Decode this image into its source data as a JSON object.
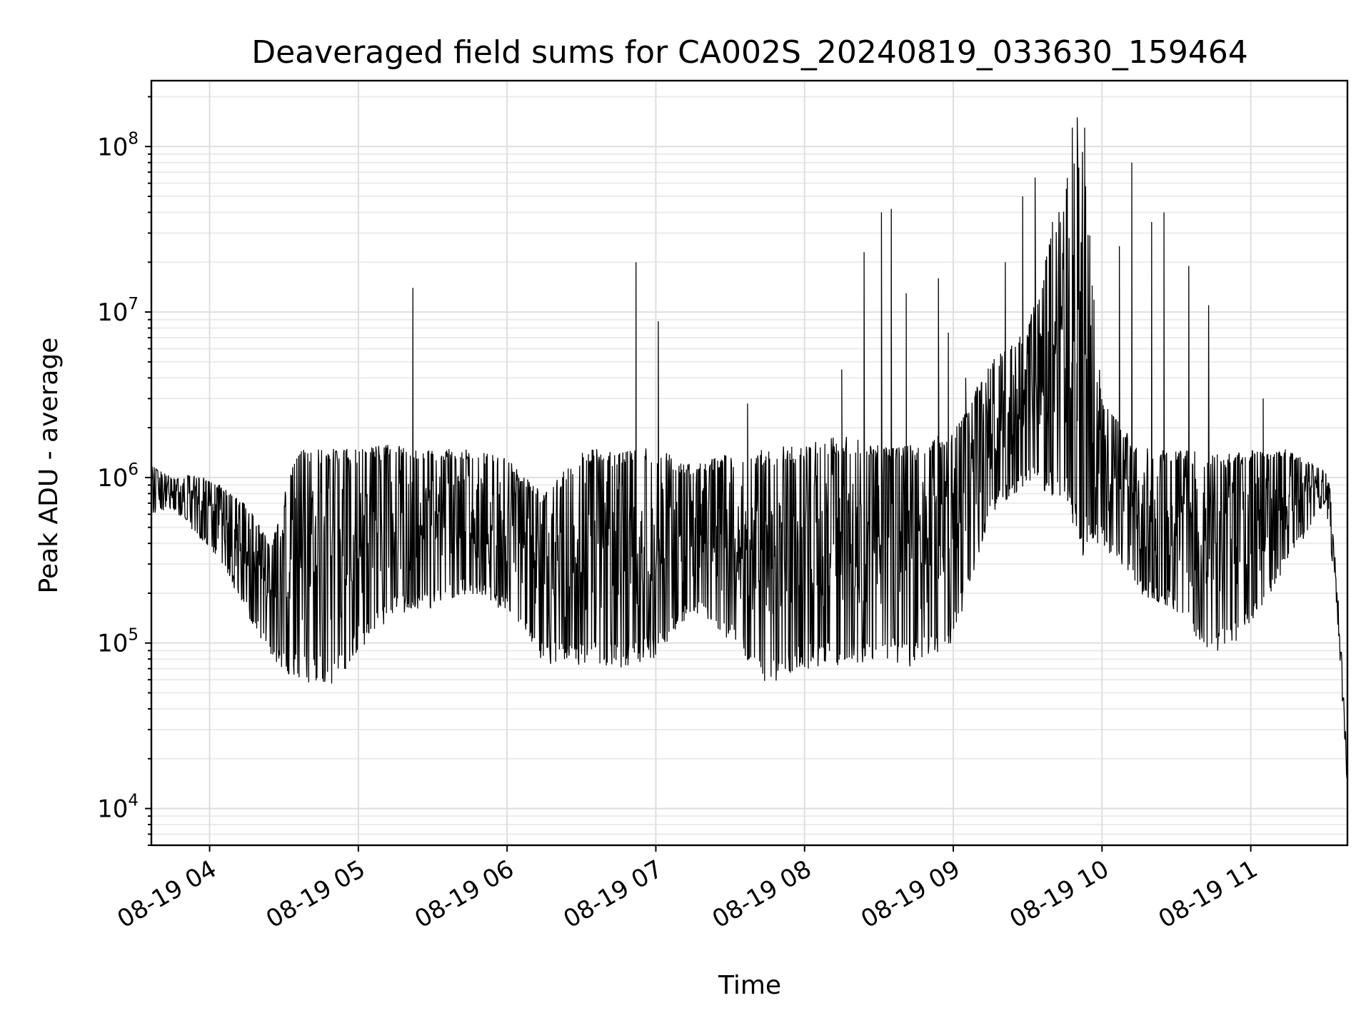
{
  "chart_data": {
    "type": "line",
    "title": "Deaveraged field sums for CA002S_20240819_033630_159464",
    "xlabel": "Time",
    "ylabel": "Peak ADU - average",
    "y_scale": "log",
    "ylim": [
      6000,
      250000000
    ],
    "xlim": [
      "2024-08-19 03:36:30",
      "2024-08-19 11:39:00"
    ],
    "grid": "major and minor",
    "x_ticks": [
      {
        "t": "2024-08-19 04:00",
        "label": "08-19 04"
      },
      {
        "t": "2024-08-19 05:00",
        "label": "08-19 05"
      },
      {
        "t": "2024-08-19 06:00",
        "label": "08-19 06"
      },
      {
        "t": "2024-08-19 07:00",
        "label": "08-19 07"
      },
      {
        "t": "2024-08-19 08:00",
        "label": "08-19 08"
      },
      {
        "t": "2024-08-19 09:00",
        "label": "08-19 09"
      },
      {
        "t": "2024-08-19 10:00",
        "label": "08-19 10"
      },
      {
        "t": "2024-08-19 11:00",
        "label": "08-19 11"
      }
    ],
    "y_ticks": [
      {
        "value": 10000,
        "base": "10",
        "exp": "4"
      },
      {
        "value": 100000,
        "base": "10",
        "exp": "5"
      },
      {
        "value": 1000000,
        "base": "10",
        "exp": "6"
      },
      {
        "value": 10000000,
        "base": "10",
        "exp": "7"
      },
      {
        "value": 100000000,
        "base": "10",
        "exp": "8"
      }
    ],
    "series": [
      {
        "line_color": "#000000",
        "envelope": [
          {
            "t": "2024-08-19 03:36",
            "low": 600000,
            "high": 1200000
          },
          {
            "t": "2024-08-19 03:45",
            "low": 650000,
            "high": 1000000
          },
          {
            "t": "2024-08-19 03:55",
            "low": 450000,
            "high": 1050000
          },
          {
            "t": "2024-08-19 04:05",
            "low": 300000,
            "high": 900000
          },
          {
            "t": "2024-08-19 04:15",
            "low": 150000,
            "high": 700000
          },
          {
            "t": "2024-08-19 04:25",
            "low": 80000,
            "high": 400000
          },
          {
            "t": "2024-08-19 04:35",
            "low": 58000,
            "high": 1500000
          },
          {
            "t": "2024-08-19 04:50",
            "low": 55000,
            "high": 1500000
          },
          {
            "t": "2024-08-19 05:00",
            "low": 90000,
            "high": 1500000
          },
          {
            "t": "2024-08-19 05:15",
            "low": 150000,
            "high": 1600000
          },
          {
            "t": "2024-08-19 05:30",
            "low": 160000,
            "high": 1500000
          },
          {
            "t": "2024-08-19 05:45",
            "low": 200000,
            "high": 1500000
          },
          {
            "t": "2024-08-19 06:00",
            "low": 150000,
            "high": 1300000
          },
          {
            "t": "2024-08-19 06:15",
            "low": 75000,
            "high": 800000
          },
          {
            "t": "2024-08-19 06:30",
            "low": 70000,
            "high": 1500000
          },
          {
            "t": "2024-08-19 06:45",
            "low": 70000,
            "high": 1500000
          },
          {
            "t": "2024-08-19 07:00",
            "low": 80000,
            "high": 1500000
          },
          {
            "t": "2024-08-19 07:15",
            "low": 150000,
            "high": 1200000
          },
          {
            "t": "2024-08-19 07:30",
            "low": 100000,
            "high": 1400000
          },
          {
            "t": "2024-08-19 07:45",
            "low": 55000,
            "high": 1500000
          },
          {
            "t": "2024-08-19 08:00",
            "low": 70000,
            "high": 1600000
          },
          {
            "t": "2024-08-19 08:15",
            "low": 70000,
            "high": 1800000
          },
          {
            "t": "2024-08-19 08:30",
            "low": 80000,
            "high": 1600000
          },
          {
            "t": "2024-08-19 08:45",
            "low": 70000,
            "high": 1600000
          },
          {
            "t": "2024-08-19 09:00",
            "low": 100000,
            "high": 2000000
          },
          {
            "t": "2024-08-19 09:15",
            "low": 600000,
            "high": 5000000
          },
          {
            "t": "2024-08-19 09:30",
            "low": 900000,
            "high": 8000000
          },
          {
            "t": "2024-08-19 09:45",
            "low": 700000,
            "high": 60000000
          },
          {
            "t": "2024-08-19 09:52",
            "low": 300000,
            "high": 120000000
          },
          {
            "t": "2024-08-19 10:00",
            "low": 400000,
            "high": 3000000
          },
          {
            "t": "2024-08-19 10:15",
            "low": 200000,
            "high": 1500000
          },
          {
            "t": "2024-08-19 10:30",
            "low": 150000,
            "high": 1500000
          },
          {
            "t": "2024-08-19 10:45",
            "low": 80000,
            "high": 1400000
          },
          {
            "t": "2024-08-19 11:00",
            "low": 120000,
            "high": 1500000
          },
          {
            "t": "2024-08-19 11:15",
            "low": 300000,
            "high": 1500000
          },
          {
            "t": "2024-08-19 11:30",
            "low": 700000,
            "high": 1100000
          },
          {
            "t": "2024-08-19 11:33",
            "low": 300000,
            "high": 800000
          },
          {
            "t": "2024-08-19 11:36",
            "low": 50000,
            "high": 200000
          },
          {
            "t": "2024-08-19 11:39",
            "low": 9500,
            "high": 25000
          }
        ],
        "spikes": [
          {
            "t": "2024-08-19 05:22",
            "value": 14000000
          },
          {
            "t": "2024-08-19 06:52",
            "value": 20000000
          },
          {
            "t": "2024-08-19 07:01",
            "value": 8800000
          },
          {
            "t": "2024-08-19 07:37",
            "value": 2800000
          },
          {
            "t": "2024-08-19 08:15",
            "value": 4500000
          },
          {
            "t": "2024-08-19 08:24",
            "value": 23000000
          },
          {
            "t": "2024-08-19 08:35",
            "value": 42000000
          },
          {
            "t": "2024-08-19 08:31",
            "value": 40000000
          },
          {
            "t": "2024-08-19 08:41",
            "value": 13000000
          },
          {
            "t": "2024-08-19 08:54",
            "value": 16000000
          },
          {
            "t": "2024-08-19 08:58",
            "value": 7500000
          },
          {
            "t": "2024-08-19 09:05",
            "value": 4000000
          },
          {
            "t": "2024-08-19 09:21",
            "value": 20000000
          },
          {
            "t": "2024-08-19 09:28",
            "value": 50000000
          },
          {
            "t": "2024-08-19 09:33",
            "value": 65000000
          },
          {
            "t": "2024-08-19 09:40",
            "value": 35000000
          },
          {
            "t": "2024-08-19 09:48",
            "value": 130000000
          },
          {
            "t": "2024-08-19 09:50",
            "value": 150000000
          },
          {
            "t": "2024-08-19 09:53",
            "value": 130000000
          },
          {
            "t": "2024-08-19 10:07",
            "value": 25000000
          },
          {
            "t": "2024-08-19 10:12",
            "value": 80000000
          },
          {
            "t": "2024-08-19 10:20",
            "value": 35000000
          },
          {
            "t": "2024-08-19 10:25",
            "value": 40000000
          },
          {
            "t": "2024-08-19 10:35",
            "value": 19000000
          },
          {
            "t": "2024-08-19 10:43",
            "value": 11000000
          },
          {
            "t": "2024-08-19 11:05",
            "value": 3000000
          }
        ]
      }
    ]
  }
}
